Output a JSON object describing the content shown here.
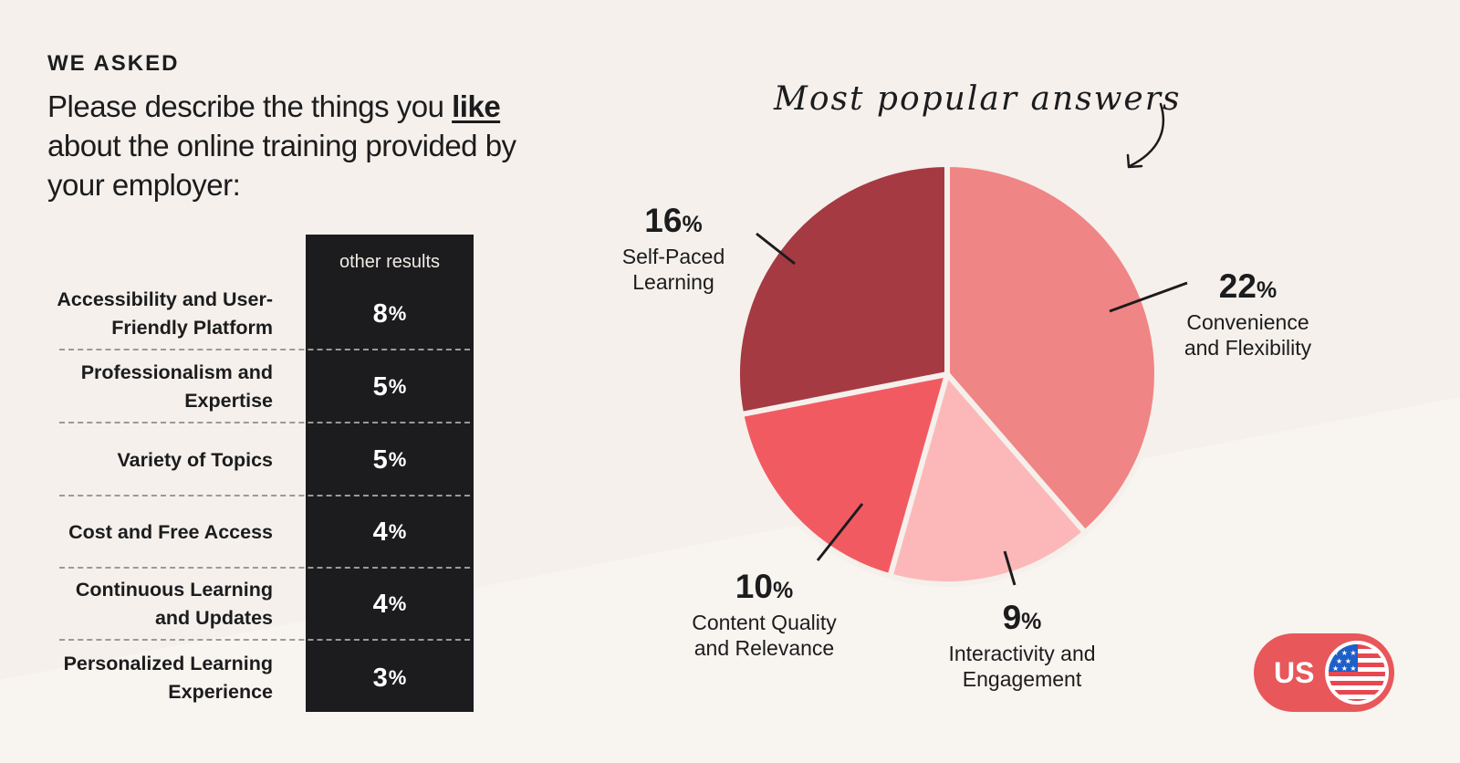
{
  "eyebrow": "WE ASKED",
  "question": {
    "part1": "Please describe the things you ",
    "emphasis": "like",
    "part2": " about the online training provided by your employer:"
  },
  "table": {
    "column_header": "other results",
    "rows": [
      {
        "label": "Accessibility and User-Friendly Platform",
        "value": "8",
        "unit": "%"
      },
      {
        "label": "Professionalism and Expertise",
        "value": "5",
        "unit": "%"
      },
      {
        "label": "Variety of Topics",
        "value": "5",
        "unit": "%"
      },
      {
        "label": "Cost and Free Access",
        "value": "4",
        "unit": "%"
      },
      {
        "label": "Continuous Learning and Updates",
        "value": "4",
        "unit": "%"
      },
      {
        "label": "Personalized Learning Experience",
        "value": "3",
        "unit": "%"
      }
    ]
  },
  "chart_title": "Most popular answers",
  "chart_data": {
    "type": "pie",
    "title": "Most popular answers",
    "slices": [
      {
        "label": "Convenience and Flexibility",
        "value": 22,
        "display": "22",
        "unit": "%",
        "color": "#f08585"
      },
      {
        "label": "Interactivity and Engagement",
        "value": 9,
        "display": "9",
        "unit": "%",
        "color": "#fcb8b8"
      },
      {
        "label": "Content Quality and Relevance",
        "value": 10,
        "display": "10",
        "unit": "%",
        "color": "#f25a62"
      },
      {
        "label": "Self-Paced Learning",
        "value": 16,
        "display": "16",
        "unit": "%",
        "color": "#a53a43"
      }
    ]
  },
  "badge": {
    "label": "US",
    "flag_icon": "us-flag-icon"
  },
  "colors": {
    "background": "#f5f0eb",
    "dark": "#1c1c1e",
    "accent": "#e8575a"
  }
}
